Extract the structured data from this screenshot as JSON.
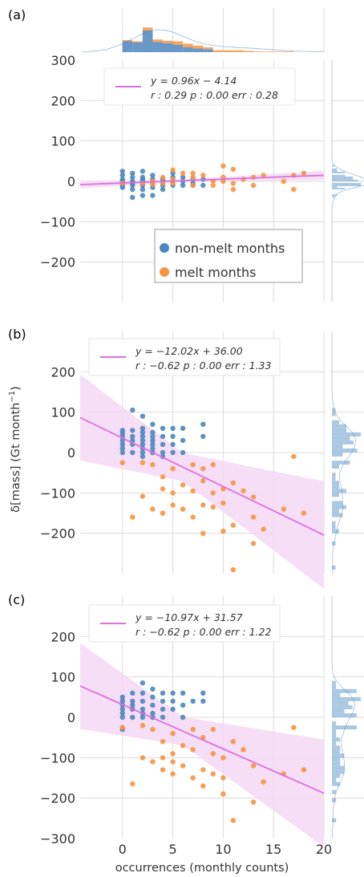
{
  "colors": {
    "non_melt": "#4c86bd",
    "melt": "#f79440",
    "fit_line": "#dd6fdd",
    "fit_band": "#f4d8f4",
    "grid": "#dcdcdc",
    "marginal": "#8fb5d9"
  },
  "x_axis": {
    "label": "occurrences (monthly counts)",
    "ticks": [
      "0",
      "5",
      "10",
      "15",
      "20"
    ],
    "xlim": [
      -4.2,
      20
    ]
  },
  "y_axis": {
    "label_prefix": "δ[mass]  (Gt month",
    "label_sup": "−1",
    "label_suffix": ")"
  },
  "top_histogram": {
    "bin_edges": [
      0,
      1,
      2,
      3,
      4,
      5,
      6,
      7,
      8,
      9,
      10,
      11,
      12,
      13,
      14,
      15,
      16,
      17,
      18
    ],
    "non_melt_counts": [
      18,
      16,
      36,
      17,
      15,
      12,
      8,
      6,
      5,
      0,
      0,
      0,
      0,
      0,
      0,
      0,
      0,
      0
    ],
    "melt_counts": [
      2,
      2,
      5,
      4,
      4,
      6,
      6,
      5,
      3,
      3,
      3,
      3,
      2,
      1,
      1,
      1,
      1,
      0
    ]
  },
  "chart_data": [
    {
      "type": "scatter",
      "panel_label": "(a)",
      "ylim": [
        -300,
        300
      ],
      "y_ticks": [
        "300",
        "200",
        "100",
        "0",
        "−100",
        "−200"
      ],
      "y_tick_values": [
        300,
        200,
        100,
        0,
        -100,
        -200
      ],
      "fit": {
        "slope": 0.96,
        "intercept": -4.14,
        "band": 3
      },
      "legend_eq": "y = 0.96x − 4.14",
      "legend_stats": "r : 0.29   p : 0.00   err : 0.28",
      "series_legend": [
        "non-melt months",
        "melt months"
      ],
      "series": [
        {
          "name": "non-melt months",
          "points": [
            [
              0,
              25
            ],
            [
              0,
              15
            ],
            [
              0,
              5
            ],
            [
              0,
              0
            ],
            [
              0,
              -5
            ],
            [
              0,
              -10
            ],
            [
              0,
              -15
            ],
            [
              1,
              20
            ],
            [
              1,
              10
            ],
            [
              1,
              0
            ],
            [
              1,
              -5
            ],
            [
              1,
              -10
            ],
            [
              1,
              -20
            ],
            [
              1,
              -40
            ],
            [
              2,
              25
            ],
            [
              2,
              10
            ],
            [
              2,
              5
            ],
            [
              2,
              0
            ],
            [
              2,
              -5
            ],
            [
              2,
              -10
            ],
            [
              2,
              -20
            ],
            [
              2,
              -35
            ],
            [
              3,
              15
            ],
            [
              3,
              5
            ],
            [
              3,
              -5
            ],
            [
              3,
              -15
            ],
            [
              3,
              -35
            ],
            [
              4,
              5
            ],
            [
              4,
              0
            ],
            [
              4,
              -10
            ],
            [
              4,
              -20
            ],
            [
              5,
              20
            ],
            [
              5,
              10
            ],
            [
              5,
              0
            ],
            [
              5,
              -10
            ],
            [
              6,
              10
            ],
            [
              6,
              0
            ],
            [
              6,
              -10
            ],
            [
              7,
              5
            ],
            [
              7,
              -5
            ],
            [
              7,
              -10
            ],
            [
              8,
              5
            ],
            [
              8,
              -10
            ]
          ]
        },
        {
          "name": "melt months",
          "points": [
            [
              0,
              -5
            ],
            [
              2,
              -5
            ],
            [
              3,
              0
            ],
            [
              3,
              -8
            ],
            [
              4,
              10
            ],
            [
              4,
              -5
            ],
            [
              5,
              28
            ],
            [
              5,
              5
            ],
            [
              5,
              -5
            ],
            [
              6,
              20
            ],
            [
              7,
              10
            ],
            [
              7,
              20
            ],
            [
              7,
              -10
            ],
            [
              8,
              15
            ],
            [
              9,
              0
            ],
            [
              9,
              -10
            ],
            [
              10,
              38
            ],
            [
              10,
              10
            ],
            [
              10,
              0
            ],
            [
              11,
              30
            ],
            [
              11,
              -5
            ],
            [
              11,
              -20
            ],
            [
              12,
              5
            ],
            [
              13,
              10
            ],
            [
              13,
              -10
            ],
            [
              14,
              15
            ],
            [
              16,
              0
            ],
            [
              17,
              15
            ],
            [
              17,
              -20
            ],
            [
              18,
              20
            ]
          ]
        }
      ]
    },
    {
      "type": "scatter",
      "panel_label": "(b)",
      "ylim": [
        -300,
        300
      ],
      "y_ticks": [
        "200",
        "100",
        "0",
        "−100",
        "−200"
      ],
      "y_tick_values": [
        200,
        100,
        0,
        -100,
        -200
      ],
      "fit": {
        "slope": -12.02,
        "intercept": 36.0,
        "band": 35
      },
      "legend_eq": "y = −12.02x + 36.00",
      "legend_stats": "r : −0.62   p : 0.00   err : 1.33",
      "series": [
        {
          "name": "non-melt months",
          "points": [
            [
              0,
              55
            ],
            [
              0,
              48
            ],
            [
              0,
              40
            ],
            [
              0,
              30
            ],
            [
              0,
              20
            ],
            [
              0,
              10
            ],
            [
              0,
              0
            ],
            [
              1,
              105
            ],
            [
              1,
              55
            ],
            [
              1,
              40
            ],
            [
              1,
              30
            ],
            [
              1,
              20
            ],
            [
              1,
              0
            ],
            [
              2,
              90
            ],
            [
              2,
              60
            ],
            [
              2,
              50
            ],
            [
              2,
              40
            ],
            [
              2,
              30
            ],
            [
              2,
              20
            ],
            [
              2,
              10
            ],
            [
              2,
              0
            ],
            [
              2,
              -10
            ],
            [
              3,
              70
            ],
            [
              3,
              50
            ],
            [
              3,
              40
            ],
            [
              3,
              30
            ],
            [
              3,
              20
            ],
            [
              3,
              10
            ],
            [
              3,
              0
            ],
            [
              4,
              60
            ],
            [
              4,
              40
            ],
            [
              4,
              20
            ],
            [
              4,
              0
            ],
            [
              4,
              -10
            ],
            [
              5,
              60
            ],
            [
              5,
              40
            ],
            [
              5,
              20
            ],
            [
              5,
              0
            ],
            [
              6,
              60
            ],
            [
              6,
              30
            ],
            [
              6,
              0
            ],
            [
              8,
              70
            ],
            [
              8,
              40
            ]
          ]
        },
        {
          "name": "melt months",
          "points": [
            [
              0,
              -25
            ],
            [
              1,
              -160
            ],
            [
              2,
              -108
            ],
            [
              2,
              -25
            ],
            [
              3,
              -30
            ],
            [
              3,
              -140
            ],
            [
              4,
              -60
            ],
            [
              4,
              -90
            ],
            [
              4,
              -150
            ],
            [
              5,
              -40
            ],
            [
              5,
              -100
            ],
            [
              5,
              -130
            ],
            [
              6,
              -80
            ],
            [
              6,
              -140
            ],
            [
              7,
              -30
            ],
            [
              7,
              -95
            ],
            [
              7,
              -160
            ],
            [
              8,
              -40
            ],
            [
              8,
              -70
            ],
            [
              8,
              -200
            ],
            [
              8,
              -130
            ],
            [
              9,
              -100
            ],
            [
              9,
              -135
            ],
            [
              9,
              -30
            ],
            [
              10,
              -90
            ],
            [
              10,
              -125
            ],
            [
              10,
              -195
            ],
            [
              11,
              -180
            ],
            [
              11,
              -290
            ],
            [
              11,
              -75
            ],
            [
              12,
              -95
            ],
            [
              13,
              -110
            ],
            [
              13,
              -160
            ],
            [
              13,
              -225
            ],
            [
              14,
              -190
            ],
            [
              16,
              -140
            ],
            [
              17,
              -10
            ],
            [
              18,
              -150
            ]
          ]
        }
      ]
    },
    {
      "type": "scatter",
      "panel_label": "(c)",
      "ylim": [
        -300,
        300
      ],
      "y_ticks": [
        "200",
        "100",
        "0",
        "−100",
        "−200",
        "−300"
      ],
      "y_tick_values": [
        200,
        100,
        0,
        -100,
        -200,
        -300
      ],
      "fit": {
        "slope": -10.97,
        "intercept": 31.57,
        "band": 35
      },
      "legend_eq": "y = −10.97x + 31.57",
      "legend_stats": "r : −0.62   p : 0.00   err : 1.22",
      "series": [
        {
          "name": "non-melt months",
          "points": [
            [
              0,
              50
            ],
            [
              0,
              40
            ],
            [
              0,
              30
            ],
            [
              0,
              20
            ],
            [
              0,
              10
            ],
            [
              0,
              0
            ],
            [
              0,
              -30
            ],
            [
              1,
              60
            ],
            [
              1,
              40
            ],
            [
              1,
              30
            ],
            [
              1,
              20
            ],
            [
              1,
              0
            ],
            [
              2,
              85
            ],
            [
              2,
              60
            ],
            [
              2,
              40
            ],
            [
              2,
              20
            ],
            [
              2,
              10
            ],
            [
              2,
              0
            ],
            [
              3,
              70
            ],
            [
              3,
              50
            ],
            [
              3,
              30
            ],
            [
              3,
              10
            ],
            [
              3,
              0
            ],
            [
              4,
              60
            ],
            [
              4,
              40
            ],
            [
              4,
              20
            ],
            [
              4,
              0
            ],
            [
              5,
              60
            ],
            [
              5,
              40
            ],
            [
              5,
              20
            ],
            [
              6,
              60
            ],
            [
              6,
              30
            ],
            [
              6,
              0
            ],
            [
              7,
              40
            ],
            [
              8,
              60
            ],
            [
              8,
              40
            ]
          ]
        },
        {
          "name": "melt months",
          "points": [
            [
              0,
              -25
            ],
            [
              1,
              -165
            ],
            [
              2,
              -100
            ],
            [
              2,
              -20
            ],
            [
              3,
              -30
            ],
            [
              3,
              -110
            ],
            [
              4,
              -60
            ],
            [
              4,
              -100
            ],
            [
              4,
              -130
            ],
            [
              5,
              -40
            ],
            [
              5,
              -90
            ],
            [
              5,
              -110
            ],
            [
              5,
              -140
            ],
            [
              6,
              -70
            ],
            [
              6,
              -120
            ],
            [
              7,
              -30
            ],
            [
              7,
              -80
            ],
            [
              7,
              -150
            ],
            [
              8,
              -50
            ],
            [
              8,
              -170
            ],
            [
              8,
              -130
            ],
            [
              9,
              -90
            ],
            [
              9,
              -140
            ],
            [
              9,
              -30
            ],
            [
              10,
              -100
            ],
            [
              10,
              -150
            ],
            [
              10,
              -190
            ],
            [
              11,
              -255
            ],
            [
              11,
              -60
            ],
            [
              12,
              -80
            ],
            [
              13,
              -120
            ],
            [
              13,
              -210
            ],
            [
              14,
              -160
            ],
            [
              16,
              -140
            ],
            [
              17,
              -25
            ],
            [
              18,
              -130
            ]
          ]
        }
      ]
    }
  ]
}
